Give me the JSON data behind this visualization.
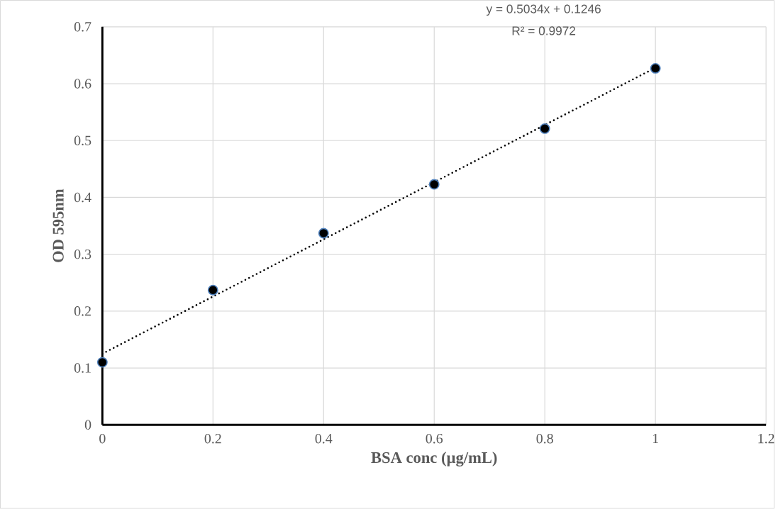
{
  "chart_data": {
    "type": "scatter",
    "xlabel": "BSA conc (µg/mL)",
    "ylabel": "OD 595nm",
    "annotations": [
      "y = 0.5034x + 0.1246",
      "R² = 0.9972"
    ],
    "xlim": [
      0,
      1.2
    ],
    "xticks": [
      0,
      0.2,
      0.4,
      0.6,
      0.8,
      1,
      1.2
    ],
    "ylim": [
      0,
      0.7
    ],
    "yticks": [
      0,
      0.1,
      0.2,
      0.3,
      0.4,
      0.5,
      0.6,
      0.7
    ],
    "grid": true,
    "series": [
      {
        "marker": "circle",
        "color": "#000000",
        "x": [
          0,
          0.2,
          0.4,
          0.6,
          0.8,
          1
        ],
        "values": [
          0.11,
          0.237,
          0.337,
          0.423,
          0.521,
          0.627
        ]
      },
      {
        "type": "line",
        "marker": "none",
        "line_style": "dotted",
        "color": "#000000",
        "x": [
          0,
          1
        ],
        "values": [
          0.125,
          0.628
        ]
      }
    ]
  }
}
